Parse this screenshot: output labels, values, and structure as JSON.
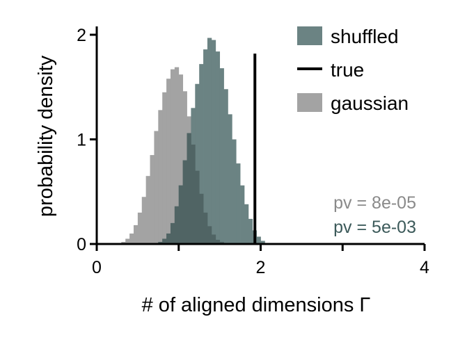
{
  "chart_data": {
    "type": "histogram",
    "title": "",
    "xlabel": "# of aligned dimensions Γ",
    "ylabel": "probability density",
    "xlim": [
      0,
      4
    ],
    "ylim": [
      0,
      2.05
    ],
    "xticks": [
      0,
      1,
      2,
      3,
      4
    ],
    "xtick_labels": [
      "0",
      "",
      "2",
      "",
      "4"
    ],
    "yticks": [
      0,
      1,
      2
    ],
    "ytick_labels": [
      "0",
      "1",
      "2"
    ],
    "grid": false,
    "legend_position": "top-right",
    "bin_width": 0.05,
    "series": [
      {
        "name": "gaussian",
        "kind": "histogram",
        "color": "#a3a3a3",
        "bin_start": 0.3,
        "densities": [
          0.02,
          0.05,
          0.1,
          0.18,
          0.3,
          0.45,
          0.65,
          0.85,
          1.08,
          1.28,
          1.45,
          1.58,
          1.67,
          1.69,
          1.62,
          1.46,
          1.22,
          0.95,
          0.7,
          0.48,
          0.3,
          0.17,
          0.09,
          0.04,
          0.02
        ]
      },
      {
        "name": "shuffled",
        "kind": "histogram",
        "color": "#6b8383",
        "bin_start": 0.75,
        "densities": [
          0.02,
          0.05,
          0.1,
          0.2,
          0.36,
          0.56,
          0.8,
          1.06,
          1.3,
          1.53,
          1.72,
          1.86,
          1.97,
          1.95,
          1.84,
          1.68,
          1.48,
          1.24,
          1.0,
          0.77,
          0.56,
          0.38,
          0.24,
          0.13,
          0.07,
          0.03,
          0.01
        ]
      },
      {
        "name": "true",
        "kind": "vline",
        "color": "#000000",
        "x": 1.93,
        "y_top": 1.82
      }
    ],
    "overlap_color": "#506464",
    "annotations": [
      {
        "text": "pv = 8e-05",
        "color": "#8a8a8a"
      },
      {
        "text": "pv = 5e-03",
        "color": "#3c5a5a"
      }
    ]
  }
}
